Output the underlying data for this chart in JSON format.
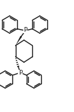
{
  "bg_color": "#ffffff",
  "line_color": "#1a1a1a",
  "line_width": 1.0,
  "font_size": 6.5,
  "P_label": "P",
  "figsize": [
    1.08,
    1.62
  ],
  "dpi": 100,
  "xlim": [
    0,
    10.8
  ],
  "ylim": [
    0,
    16.2
  ]
}
